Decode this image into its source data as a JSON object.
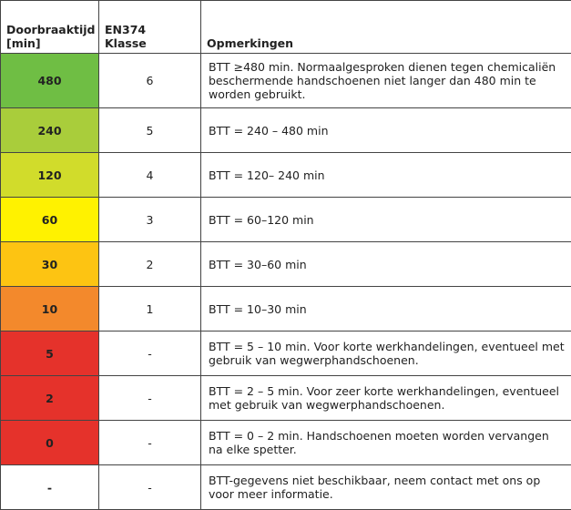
{
  "table": {
    "header": [
      "Doorbraaktijd [min]",
      "EN374 Klasse",
      "Opmerkingen"
    ],
    "rows": [
      {
        "color": "#6fbe44",
        "cells": [
          "480",
          "6",
          "BTT ≥480 min. Normaalgesproken dienen tegen chemicaliën beschermende handschoenen niet langer dan 480 min te worden gebruikt."
        ]
      },
      {
        "color": "#a9cd3b",
        "cells": [
          "240",
          "5",
          "BTT = 240 – 480 min"
        ]
      },
      {
        "color": "#d1dc2b",
        "cells": [
          "120",
          "4",
          "BTT = 120– 240 min"
        ]
      },
      {
        "color": "#fff200",
        "cells": [
          "60",
          "3",
          "BTT = 60–120 min"
        ]
      },
      {
        "color": "#fdc412",
        "cells": [
          "30",
          "2",
          "BTT = 30–60 min"
        ]
      },
      {
        "color": "#f3892c",
        "cells": [
          "10",
          "1",
          "BTT = 10–30 min"
        ]
      },
      {
        "color": "#e5322b",
        "cells": [
          "5",
          "-",
          "BTT = 5 – 10 min. Voor korte werkhandelingen, eventueel met gebruik van wegwerphandschoenen."
        ]
      },
      {
        "color": "#e5322b",
        "cells": [
          "2",
          "-",
          "BTT = 2 – 5 min. Voor zeer korte werkhandelingen, eventueel met gebruik van wegwerphandschoenen."
        ]
      },
      {
        "color": "#e5322b",
        "cells": [
          "0",
          "-",
          "BTT = 0 – 2 min. Handschoenen moeten worden vervangen na elke spetter."
        ]
      },
      {
        "color": "#ffffff",
        "cells": [
          "-",
          "-",
          "BTT-gegevens niet beschikbaar, neem contact met ons op voor meer informatie."
        ]
      }
    ]
  }
}
